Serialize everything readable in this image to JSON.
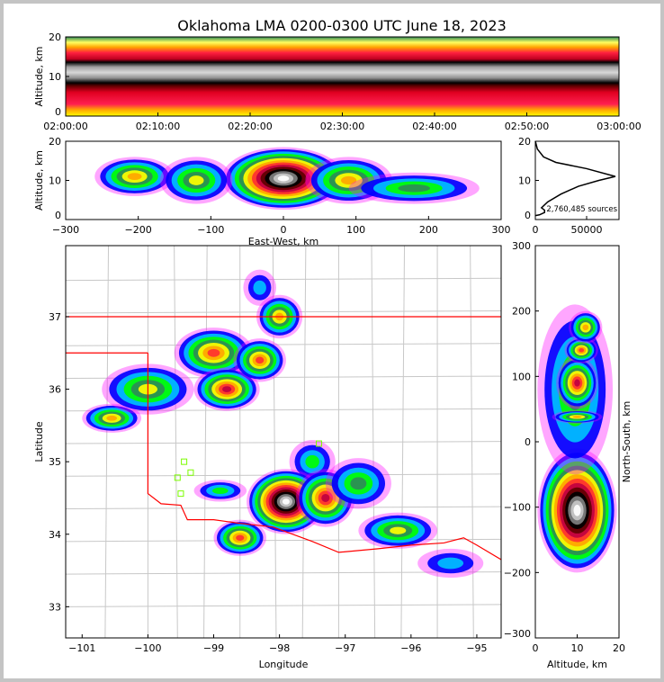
{
  "title": "Oklahoma LMA 0200-0300 UTC June 18, 2023",
  "colors": {
    "state_border": "#ff0000",
    "county_border": "#c8c8c8",
    "station": "#7cfc00",
    "density_palette": [
      "#ff00ff",
      "#0000ff",
      "#00bfff",
      "#00ff00",
      "#2e8b57",
      "#ffff00",
      "#ffa500",
      "#ff3030",
      "#c00040",
      "#600000",
      "#000000",
      "#808080",
      "#c8c8c8",
      "#ffffff"
    ]
  },
  "chart_data": [
    {
      "id": "time-height",
      "type": "heatmap",
      "ylabel": "Altitude, km",
      "xlabel": "",
      "xlim": [
        0,
        60
      ],
      "ylim": [
        0,
        20
      ],
      "xticks": [
        0,
        10,
        20,
        30,
        40,
        50,
        60
      ],
      "xtick_labels": [
        "02:00:00",
        "02:10:00",
        "02:20:00",
        "02:30:00",
        "02:40:00",
        "02:50:00",
        "03:00:00"
      ],
      "yticks": [
        0,
        10,
        20
      ],
      "ytick_labels": [
        "0",
        "10",
        "20"
      ],
      "peak_band_altitude_km": [
        9,
        13
      ]
    },
    {
      "id": "ew-altitude",
      "type": "heatmap",
      "ylabel": "Altitude, km",
      "xlabel": "East-West, km",
      "xlim": [
        -300,
        300
      ],
      "ylim": [
        0,
        20
      ],
      "xticks": [
        -300,
        -200,
        -100,
        0,
        100,
        200,
        300
      ],
      "xtick_labels": [
        "−300",
        "−200",
        "−100",
        "0",
        "100",
        "200",
        "300"
      ],
      "yticks": [
        0,
        10,
        20
      ],
      "ytick_labels": [
        "0",
        "10",
        "20"
      ],
      "density_cores": [
        {
          "x": 0,
          "y": 10.5,
          "rx": 85,
          "ry": 8,
          "level": 13
        },
        {
          "x": -205,
          "y": 11,
          "rx": 55,
          "ry": 5,
          "level": 6
        },
        {
          "x": -120,
          "y": 10,
          "rx": 50,
          "ry": 6,
          "level": 5
        },
        {
          "x": 90,
          "y": 10,
          "rx": 60,
          "ry": 6,
          "level": 6
        },
        {
          "x": 180,
          "y": 8,
          "rx": 90,
          "ry": 4,
          "level": 4
        }
      ]
    },
    {
      "id": "altitude-histogram",
      "type": "line",
      "xlabel": "",
      "ylabel": "",
      "xlim": [
        0,
        81600
      ],
      "ylim": [
        0,
        20
      ],
      "xticks": [
        0,
        50000
      ],
      "xtick_labels": [
        "0",
        "50000"
      ],
      "yticks": [
        0,
        10,
        20
      ],
      "ytick_labels": [
        "0",
        "10",
        "20"
      ],
      "annotation": "2,760,485 sources",
      "x": [
        0,
        2000,
        8000,
        20000,
        50000,
        78000,
        62000,
        42000,
        25000,
        12000,
        6000,
        9000,
        9000,
        4000,
        0
      ],
      "y": [
        20,
        18,
        16,
        14.6,
        13,
        11,
        10,
        8.5,
        6.5,
        4.5,
        3,
        2.4,
        1.8,
        1.2,
        1
      ]
    },
    {
      "id": "plan-view",
      "type": "heatmap",
      "xlabel": "Longitude",
      "ylabel": "Latitude",
      "xlim": [
        -101.25,
        -94.63
      ],
      "ylim": [
        32.57,
        37.98
      ],
      "xticks": [
        -101,
        -100,
        -99,
        -98,
        -97,
        -96,
        -95
      ],
      "xtick_labels": [
        "−101",
        "−100",
        "−99",
        "−98",
        "−97",
        "−96",
        "−95"
      ],
      "yticks": [
        33,
        34,
        35,
        36,
        37
      ],
      "ytick_labels": [
        "33",
        "34",
        "35",
        "36",
        "37"
      ],
      "density_cores": [
        {
          "x": -100.55,
          "y": 35.6,
          "rx": 0.45,
          "ry": 0.2,
          "level": 6
        },
        {
          "x": -100.0,
          "y": 36.0,
          "rx": 0.7,
          "ry": 0.35,
          "level": 5
        },
        {
          "x": -99.0,
          "y": 36.5,
          "rx": 0.6,
          "ry": 0.35,
          "level": 7
        },
        {
          "x": -98.8,
          "y": 36.0,
          "rx": 0.5,
          "ry": 0.3,
          "level": 8
        },
        {
          "x": -98.3,
          "y": 36.4,
          "rx": 0.4,
          "ry": 0.3,
          "level": 7
        },
        {
          "x": -98.0,
          "y": 37.0,
          "rx": 0.35,
          "ry": 0.3,
          "level": 6
        },
        {
          "x": -98.3,
          "y": 37.4,
          "rx": 0.25,
          "ry": 0.25,
          "level": 2
        },
        {
          "x": -97.5,
          "y": 35.0,
          "rx": 0.35,
          "ry": 0.3,
          "level": 3
        },
        {
          "x": -97.9,
          "y": 34.45,
          "rx": 0.6,
          "ry": 0.45,
          "level": 13
        },
        {
          "x": -97.3,
          "y": 34.5,
          "rx": 0.45,
          "ry": 0.4,
          "level": 8
        },
        {
          "x": -98.6,
          "y": 33.95,
          "rx": 0.4,
          "ry": 0.25,
          "level": 7
        },
        {
          "x": -98.9,
          "y": 34.6,
          "rx": 0.4,
          "ry": 0.15,
          "level": 3
        },
        {
          "x": -96.8,
          "y": 34.7,
          "rx": 0.5,
          "ry": 0.35,
          "level": 4
        },
        {
          "x": -96.2,
          "y": 34.05,
          "rx": 0.6,
          "ry": 0.25,
          "level": 5
        },
        {
          "x": -95.4,
          "y": 33.6,
          "rx": 0.5,
          "ry": 0.2,
          "level": 2
        }
      ]
    },
    {
      "id": "ns-altitude",
      "type": "heatmap",
      "xlabel": "Altitude, km",
      "ylabel": "North-South, km",
      "xlim": [
        0,
        20
      ],
      "ylim": [
        -300,
        300
      ],
      "xticks": [
        0,
        10,
        20
      ],
      "xtick_labels": [
        "0",
        "10",
        "20"
      ],
      "yticks": [
        -300,
        -200,
        -100,
        0,
        100,
        200,
        300
      ],
      "ytick_labels": [
        "−300",
        "−200",
        "−100",
        "0",
        "100",
        "200",
        "300"
      ],
      "density_cores": [
        {
          "x": 10,
          "y": -105,
          "rx": 9.5,
          "ry": 95,
          "level": 13
        },
        {
          "x": 9.5,
          "y": 80,
          "rx": 9,
          "ry": 130,
          "level": 4
        },
        {
          "x": 10,
          "y": 90,
          "rx": 5,
          "ry": 40,
          "level": 8
        },
        {
          "x": 11,
          "y": 140,
          "rx": 4,
          "ry": 20,
          "level": 7
        },
        {
          "x": 12,
          "y": 175,
          "rx": 4,
          "ry": 25,
          "level": 6
        },
        {
          "x": 10,
          "y": 38,
          "rx": 6,
          "ry": 10,
          "level": 6
        }
      ]
    }
  ]
}
